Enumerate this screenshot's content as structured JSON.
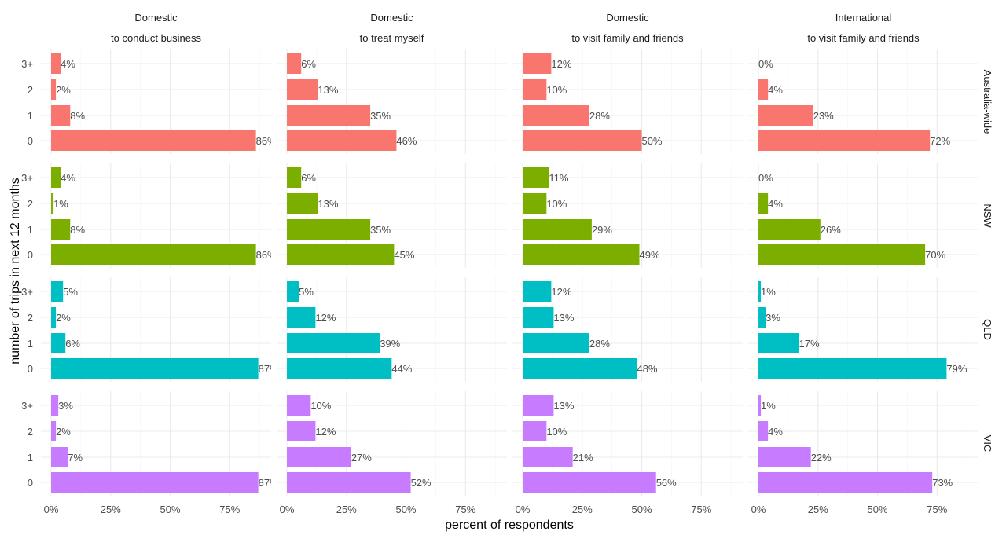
{
  "chart_data": {
    "type": "bar",
    "orientation": "horizontal",
    "xlabel": "percent of respondents",
    "ylabel": "number of trips in next 12 months",
    "xlim": [
      -4.3,
      92.4
    ],
    "x_ticks": [
      0,
      25,
      50,
      75
    ],
    "x_tick_labels": [
      "0%",
      "25%",
      "50%",
      "75%"
    ],
    "categories": [
      "3+",
      "2",
      "1",
      "0"
    ],
    "grid": true,
    "legend": "none",
    "facet_columns": [
      {
        "line1": "Domestic",
        "line2": "to conduct business"
      },
      {
        "line1": "Domestic",
        "line2": "to treat myself"
      },
      {
        "line1": "Domestic",
        "line2": "to visit family and friends"
      },
      {
        "line1": "International",
        "line2": "to visit family and friends"
      }
    ],
    "facet_rows": [
      {
        "label": "Australia-wide",
        "color": "#F8766D"
      },
      {
        "label": "NSW",
        "color": "#7CAE00"
      },
      {
        "label": "QLD",
        "color": "#00BFC4"
      },
      {
        "label": "VIC",
        "color": "#C77CFF"
      }
    ],
    "values": [
      [
        [
          4,
          2,
          8,
          86
        ],
        [
          6,
          13,
          35,
          46
        ],
        [
          12,
          10,
          28,
          50
        ],
        [
          0,
          4,
          23,
          72
        ]
      ],
      [
        [
          4,
          1,
          8,
          86
        ],
        [
          6,
          13,
          35,
          45
        ],
        [
          11,
          10,
          29,
          49
        ],
        [
          0,
          4,
          26,
          70
        ]
      ],
      [
        [
          5,
          2,
          6,
          87
        ],
        [
          5,
          12,
          39,
          44
        ],
        [
          12,
          13,
          28,
          48
        ],
        [
          1,
          3,
          17,
          79
        ]
      ],
      [
        [
          3,
          2,
          7,
          87
        ],
        [
          10,
          12,
          27,
          52
        ],
        [
          13,
          10,
          21,
          56
        ],
        [
          1,
          4,
          22,
          73
        ]
      ]
    ]
  }
}
